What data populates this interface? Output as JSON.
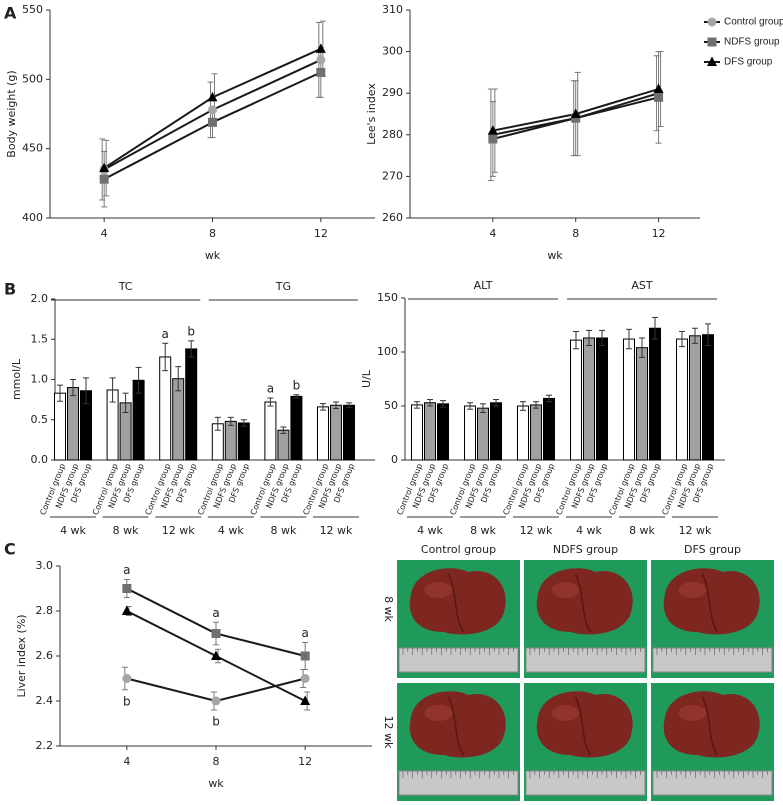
{
  "chart_data": [
    {
      "type": "line",
      "panel": "A",
      "ylabel": "Body weight (g)",
      "xlabel": "wk",
      "x": [
        4,
        8,
        12
      ],
      "xlim": [
        2,
        14
      ],
      "xticks": [
        4,
        8,
        12
      ],
      "ylim": [
        400,
        550
      ],
      "yticks": [
        400,
        450,
        500,
        550
      ],
      "line_color": "#1a1a1a",
      "series": [
        {
          "name": "Control group",
          "color": "#a6a6a6",
          "marker": "circle",
          "values": [
            435,
            478,
            514
          ],
          "errors": [
            22,
            20,
            27
          ]
        },
        {
          "name": "NDFS group",
          "color": "#707070",
          "marker": "square",
          "values": [
            428,
            469,
            505
          ],
          "errors": [
            20,
            11,
            18
          ]
        },
        {
          "name": "DFS group",
          "color": "#000000",
          "marker": "triangle",
          "values": [
            436,
            487,
            522
          ],
          "errors": [
            20,
            17,
            20
          ]
        }
      ]
    },
    {
      "type": "line",
      "ylabel": "Lee's index",
      "xlabel": "wk",
      "x": [
        4,
        8,
        12
      ],
      "xlim": [
        0,
        14
      ],
      "xticks": [
        4,
        8,
        12
      ],
      "ylim": [
        260,
        310
      ],
      "yticks": [
        260,
        270,
        280,
        290,
        300,
        310
      ],
      "line_color": "#1a1a1a",
      "legend": "right",
      "series": [
        {
          "name": "Control group",
          "color": "#a6a6a6",
          "marker": "circle",
          "values": [
            280,
            284,
            290
          ],
          "errors": [
            11,
            9,
            9
          ]
        },
        {
          "name": "NDFS group",
          "color": "#707070",
          "marker": "square",
          "values": [
            279,
            284,
            289
          ],
          "errors": [
            9,
            9,
            11
          ]
        },
        {
          "name": "DFS group",
          "color": "#000000",
          "marker": "triangle",
          "values": [
            281,
            285,
            291
          ],
          "errors": [
            10,
            10,
            9
          ]
        }
      ]
    },
    {
      "type": "bar",
      "panel": "B",
      "ylabel": "mmol/L",
      "ylim": [
        0,
        2
      ],
      "yticks": [
        {
          "value": 0,
          "label": "0.0"
        },
        0.5,
        {
          "value": 1,
          "label": "1.0"
        },
        1.5,
        {
          "value": 2,
          "label": "2.0"
        }
      ],
      "groups": [
        {
          "name": "TC",
          "categories": [
            "4 wk",
            "8 wk",
            "12 wk"
          ]
        },
        {
          "name": "TG",
          "categories": [
            "4 wk",
            "8 wk",
            "12 wk"
          ]
        }
      ],
      "series": [
        {
          "name": "Control group",
          "color": "#ffffff",
          "values": [
            0.83,
            0.87,
            1.28,
            0.45,
            0.72,
            0.66
          ],
          "errors": [
            0.1,
            0.15,
            0.17,
            0.08,
            0.05,
            0.04
          ]
        },
        {
          "name": "NDFS group",
          "color": "#a0a0a0",
          "values": [
            0.9,
            0.71,
            1.01,
            0.48,
            0.37,
            0.68
          ],
          "errors": [
            0.1,
            0.12,
            0.15,
            0.05,
            0.04,
            0.04
          ]
        },
        {
          "name": "DFS group",
          "color": "#000000",
          "values": [
            0.86,
            0.99,
            1.38,
            0.46,
            0.79,
            0.68
          ],
          "errors": [
            0.16,
            0.16,
            0.1,
            0.04,
            0.02,
            0.03
          ]
        }
      ],
      "annotations": [
        {
          "text": "a",
          "series": 0,
          "index": 2
        },
        {
          "text": "b",
          "series": 2,
          "index": 2
        },
        {
          "text": "a",
          "series": 0,
          "index": 4
        },
        {
          "text": "b",
          "series": 2,
          "index": 4
        }
      ]
    },
    {
      "type": "bar",
      "ylabel": "U/L",
      "ylim": [
        0,
        150
      ],
      "yticks": [
        0,
        50,
        100,
        150
      ],
      "groups": [
        {
          "name": "ALT",
          "categories": [
            "4 wk",
            "8 wk",
            "12 wk"
          ]
        },
        {
          "name": "AST",
          "categories": [
            "4 wk",
            "8 wk",
            "12 wk"
          ]
        }
      ],
      "series": [
        {
          "name": "Control group",
          "color": "#ffffff",
          "values": [
            51,
            50,
            50,
            111,
            112,
            112
          ],
          "errors": [
            3,
            3,
            4,
            8,
            9,
            7
          ]
        },
        {
          "name": "NDFS group",
          "color": "#a0a0a0",
          "values": [
            53,
            48,
            51,
            113,
            104,
            115
          ],
          "errors": [
            3,
            4,
            3,
            7,
            9,
            7
          ]
        },
        {
          "name": "DFS group",
          "color": "#000000",
          "values": [
            52,
            53,
            57,
            113,
            122,
            116
          ],
          "errors": [
            3,
            3,
            3,
            7,
            10,
            10
          ]
        }
      ]
    },
    {
      "type": "line",
      "panel": "C",
      "ylabel": "Liver index (%)",
      "xlabel": "wk",
      "x": [
        4,
        8,
        12
      ],
      "xlim": [
        1,
        15
      ],
      "xticks": [
        4,
        8,
        12
      ],
      "ylim": [
        2.2,
        3.0
      ],
      "yticks": [
        2.2,
        2.4,
        2.6,
        2.8,
        {
          "value": 3.0,
          "label": "3.0"
        }
      ],
      "line_color": "#1a1a1a",
      "series": [
        {
          "name": "Control group",
          "color": "#a6a6a6",
          "marker": "circle",
          "values": [
            2.5,
            2.4,
            2.5
          ],
          "errors": [
            0.05,
            0.04,
            0.04
          ]
        },
        {
          "name": "NDFS group",
          "color": "#707070",
          "marker": "square",
          "values": [
            2.9,
            2.7,
            2.6
          ],
          "errors": [
            0.04,
            0.05,
            0.06
          ]
        },
        {
          "name": "DFS group",
          "color": "#000000",
          "marker": "triangle",
          "values": [
            2.8,
            2.6,
            2.4
          ],
          "errors": [
            0.02,
            0.03,
            0.04
          ]
        }
      ],
      "annotations": [
        {
          "text": "a",
          "series": 1,
          "index": 0,
          "side": "above"
        },
        {
          "text": "a",
          "series": 1,
          "index": 1,
          "side": "above"
        },
        {
          "text": "a",
          "series": 1,
          "index": 2,
          "side": "above"
        },
        {
          "text": "b",
          "series": 0,
          "index": 0,
          "side": "below"
        },
        {
          "text": "b",
          "series": 0,
          "index": 1,
          "side": "below"
        }
      ]
    }
  ],
  "photo_panel": {
    "columns": [
      "Control group",
      "NDFS group",
      "DFS group"
    ],
    "rows": [
      "8 wk",
      "12 wk"
    ]
  }
}
